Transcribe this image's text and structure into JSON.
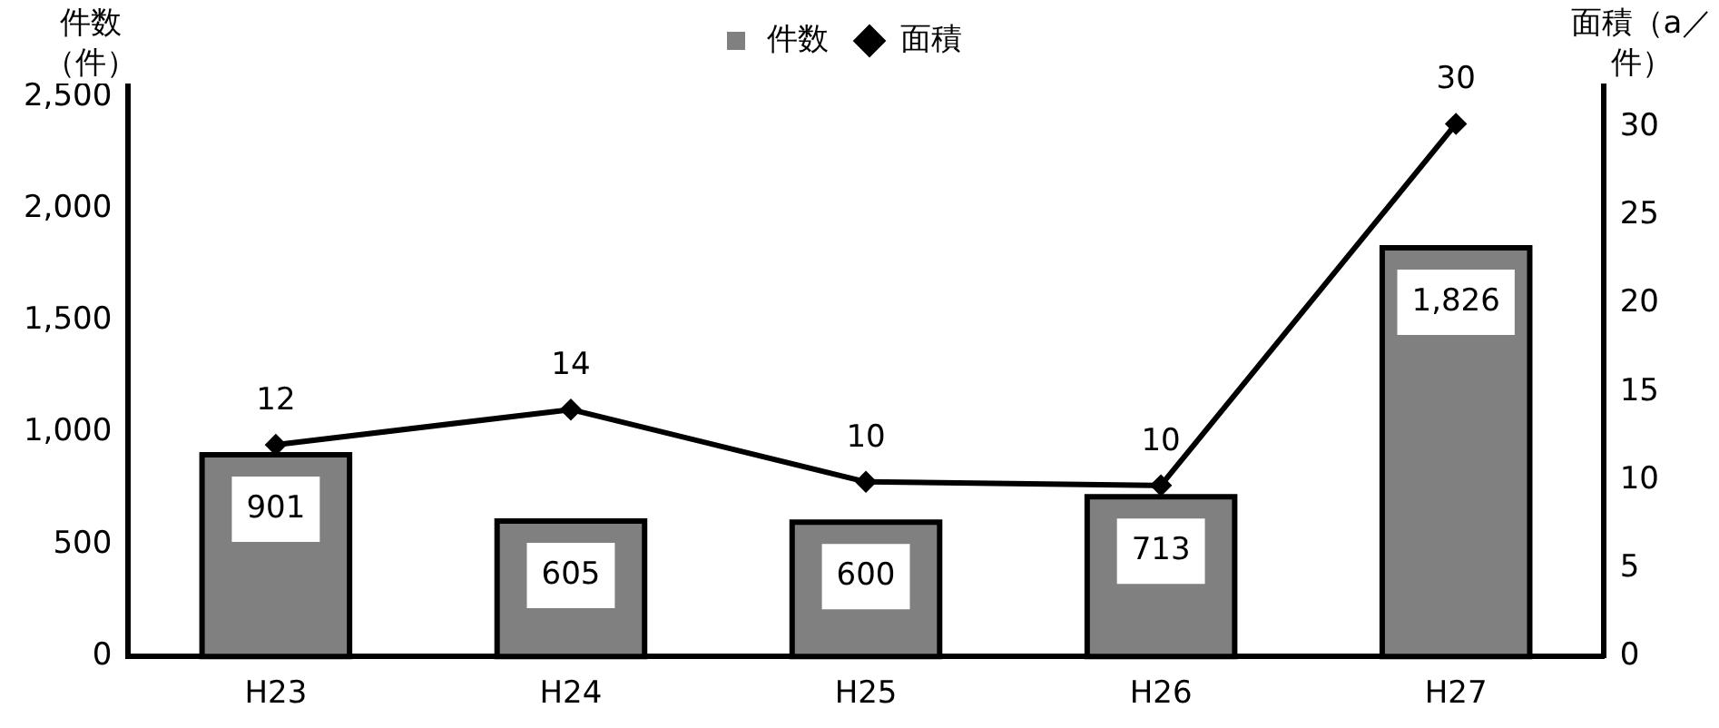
{
  "chart_data": {
    "type": "bar",
    "ylabel": "件数（件）",
    "y2label": "面積（a／件）",
    "categories": [
      "H23",
      "H24",
      "H25",
      "H26",
      "H27"
    ],
    "series": [
      {
        "name": "件数",
        "color": "#808080",
        "values": [
          901,
          605,
          600,
          713,
          1826
        ],
        "value_labels": [
          "901",
          "605",
          "600",
          "713",
          "1,826"
        ]
      },
      {
        "name": "面積",
        "type": "line",
        "axis": "y2",
        "color": "#000000",
        "values": [
          12.0,
          14.0,
          9.9,
          9.7,
          30.2
        ],
        "value_labels": [
          "12",
          "14",
          "10",
          "10",
          "30"
        ]
      }
    ],
    "ylim": [
      0,
      2600
    ],
    "yticks": [
      0,
      {
        "value": 500,
        "label": "500"
      },
      {
        "value": 1000,
        "label": "1,000"
      },
      {
        "value": 1500,
        "label": "1,500"
      },
      {
        "value": 2000,
        "label": "2,000"
      },
      {
        "value": 2500,
        "label": "2,500"
      }
    ],
    "y2lim": [
      0,
      33
    ],
    "y2ticks": [
      0,
      5,
      10,
      15,
      20,
      25,
      30
    ],
    "grid": false,
    "legend": "top",
    "marker": "diamond",
    "line_style": "solid"
  }
}
